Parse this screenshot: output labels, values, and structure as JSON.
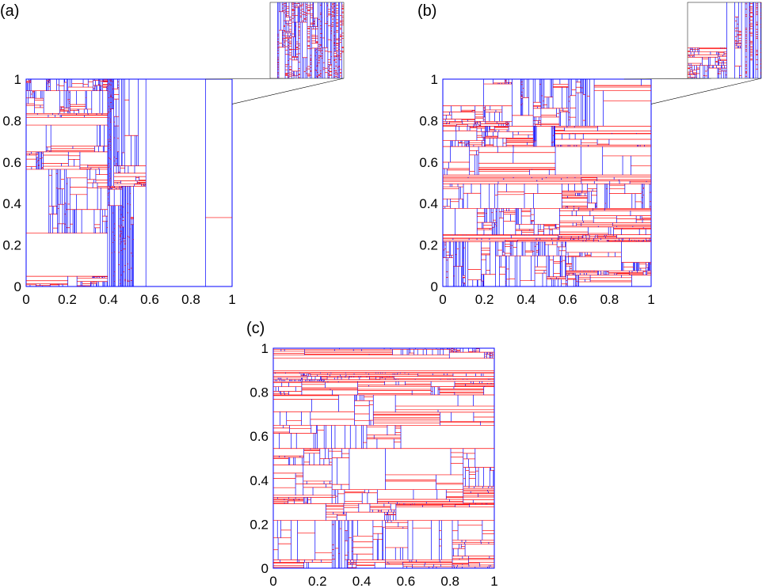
{
  "chart_data": [
    {
      "type": "heatmap",
      "panel_label": "(a)",
      "seed": 11,
      "xlim": [
        0,
        1
      ],
      "ylim": [
        0,
        1
      ],
      "xticks": [
        "0",
        "0.2",
        "0.4",
        "0.6",
        "0.8",
        "1"
      ],
      "yticks": [
        "0",
        "0.2",
        "0.4",
        "0.6",
        "0.8",
        "1"
      ],
      "inset": true,
      "vertical_split_color": "#0000ff",
      "horizontal_split_color": "#ff0000",
      "vertical_bias": 0.62
    },
    {
      "type": "heatmap",
      "panel_label": "(b)",
      "seed": 29,
      "xlim": [
        0,
        1
      ],
      "ylim": [
        0,
        1
      ],
      "xticks": [
        "0",
        "0.2",
        "0.4",
        "0.6",
        "0.8",
        "1"
      ],
      "yticks": [
        "0",
        "0.2",
        "0.4",
        "0.6",
        "0.8",
        "1"
      ],
      "inset": true,
      "vertical_split_color": "#0000ff",
      "horizontal_split_color": "#ff0000",
      "vertical_bias": 0.58
    },
    {
      "type": "heatmap",
      "panel_label": "(c)",
      "seed": 47,
      "xlim": [
        0,
        1
      ],
      "ylim": [
        0,
        1
      ],
      "xticks": [
        "0",
        "0.2",
        "0.4",
        "0.6",
        "0.8",
        "1"
      ],
      "yticks": [
        "0",
        "0.2",
        "0.4",
        "0.6",
        "0.8",
        "1"
      ],
      "inset": false,
      "vertical_split_color": "#0000ff",
      "horizontal_split_color": "#ff0000",
      "vertical_bias": 0.5
    }
  ]
}
